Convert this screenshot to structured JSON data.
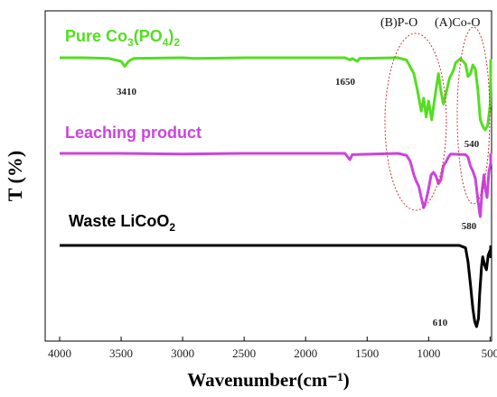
{
  "chart_data": {
    "type": "line",
    "xlabel": "Wavenumber(cm⁻¹)",
    "ylabel": "T (%)",
    "xlim": [
      4000,
      400
    ],
    "x_reversed": true,
    "x_ticks": [
      "4000",
      "3500",
      "3000",
      "2500",
      "2000",
      "1500",
      "1000",
      "500"
    ],
    "y_tick_labels": false,
    "grid": false,
    "series": [
      {
        "name": "Pure Co3(PO4)2",
        "label_parts": [
          "Pure Co",
          "3",
          "(PO",
          "4",
          ")",
          "2"
        ],
        "color": "#55dd22",
        "points": [
          [
            4000,
            0.0
          ],
          [
            3800,
            0.0
          ],
          [
            3600,
            0.01
          ],
          [
            3500,
            0.05
          ],
          [
            3470,
            0.12
          ],
          [
            3440,
            0.05
          ],
          [
            3400,
            0.01
          ],
          [
            3000,
            0.0
          ],
          [
            2900,
            0.01
          ],
          [
            2500,
            0.0
          ],
          [
            2000,
            0.0
          ],
          [
            1680,
            0.0
          ],
          [
            1640,
            0.03
          ],
          [
            1620,
            0.01
          ],
          [
            1580,
            0.05
          ],
          [
            1560,
            0.01
          ],
          [
            1250,
            0.0
          ],
          [
            1180,
            0.03
          ],
          [
            1120,
            0.22
          ],
          [
            1090,
            0.46
          ],
          [
            1060,
            0.74
          ],
          [
            1040,
            0.56
          ],
          [
            1020,
            0.82
          ],
          [
            1000,
            0.6
          ],
          [
            975,
            0.86
          ],
          [
            950,
            0.56
          ],
          [
            920,
            0.22
          ],
          [
            900,
            0.46
          ],
          [
            880,
            0.64
          ],
          [
            860,
            0.5
          ],
          [
            830,
            0.28
          ],
          [
            800,
            0.18
          ],
          [
            780,
            0.07
          ],
          [
            740,
            0.01
          ],
          [
            700,
            0.09
          ],
          [
            680,
            0.26
          ],
          [
            660,
            0.22
          ],
          [
            640,
            0.1
          ],
          [
            620,
            0.16
          ],
          [
            600,
            0.44
          ],
          [
            580,
            0.86
          ],
          [
            560,
            0.95
          ],
          [
            540,
            1.0
          ],
          [
            520,
            0.94
          ],
          [
            500,
            0.66
          ],
          [
            480,
            0.32
          ],
          [
            460,
            0.1
          ],
          [
            440,
            0.04
          ],
          [
            400,
            0.02
          ]
        ]
      },
      {
        "name": "Leaching product",
        "color": "#cc44dd",
        "points": [
          [
            4000,
            0.0
          ],
          [
            3500,
            0.0
          ],
          [
            3000,
            0.01
          ],
          [
            2500,
            0.0
          ],
          [
            2000,
            0.0
          ],
          [
            1680,
            0.0
          ],
          [
            1640,
            0.1
          ],
          [
            1620,
            0.02
          ],
          [
            1250,
            0.0
          ],
          [
            1180,
            0.03
          ],
          [
            1150,
            0.12
          ],
          [
            1120,
            0.34
          ],
          [
            1100,
            0.44
          ],
          [
            1080,
            0.52
          ],
          [
            1060,
            0.7
          ],
          [
            1040,
            0.86
          ],
          [
            1020,
            0.74
          ],
          [
            1000,
            0.56
          ],
          [
            980,
            0.34
          ],
          [
            960,
            0.3
          ],
          [
            940,
            0.36
          ],
          [
            920,
            0.48
          ],
          [
            900,
            0.42
          ],
          [
            880,
            0.2
          ],
          [
            860,
            0.14
          ],
          [
            840,
            0.06
          ],
          [
            820,
            0.01
          ],
          [
            700,
            0.02
          ],
          [
            680,
            0.06
          ],
          [
            660,
            0.2
          ],
          [
            640,
            0.28
          ],
          [
            620,
            0.4
          ],
          [
            600,
            0.72
          ],
          [
            585,
            0.95
          ],
          [
            580,
            1.0
          ],
          [
            565,
            0.58
          ],
          [
            550,
            0.34
          ],
          [
            540,
            0.55
          ],
          [
            525,
            0.7
          ],
          [
            510,
            0.3
          ],
          [
            490,
            0.15
          ],
          [
            470,
            0.06
          ],
          [
            440,
            0.02
          ],
          [
            400,
            0.0
          ]
        ]
      },
      {
        "name": "Waste LiCoO2",
        "label_parts": [
          "Waste LiCoO",
          "2"
        ],
        "color": "#000000",
        "points": [
          [
            4000,
            0.0
          ],
          [
            3500,
            0.0
          ],
          [
            3000,
            0.0
          ],
          [
            2500,
            0.0
          ],
          [
            2000,
            0.0
          ],
          [
            1500,
            0.0
          ],
          [
            1000,
            0.0
          ],
          [
            750,
            0.0
          ],
          [
            700,
            0.03
          ],
          [
            680,
            0.2
          ],
          [
            660,
            0.48
          ],
          [
            640,
            0.78
          ],
          [
            625,
            0.94
          ],
          [
            610,
            1.0
          ],
          [
            595,
            0.9
          ],
          [
            585,
            0.6
          ],
          [
            570,
            0.26
          ],
          [
            560,
            0.14
          ],
          [
            545,
            0.24
          ],
          [
            530,
            0.3
          ],
          [
            515,
            0.12
          ],
          [
            500,
            0.06
          ],
          [
            480,
            0.14
          ],
          [
            460,
            0.04
          ],
          [
            440,
            0.0
          ],
          [
            400,
            0.0
          ]
        ]
      }
    ],
    "annotations": {
      "peaks": [
        "3410",
        "1650",
        "540",
        "580",
        "610"
      ],
      "regions": [
        "(B)P-O",
        "(A)Co-O"
      ]
    }
  }
}
